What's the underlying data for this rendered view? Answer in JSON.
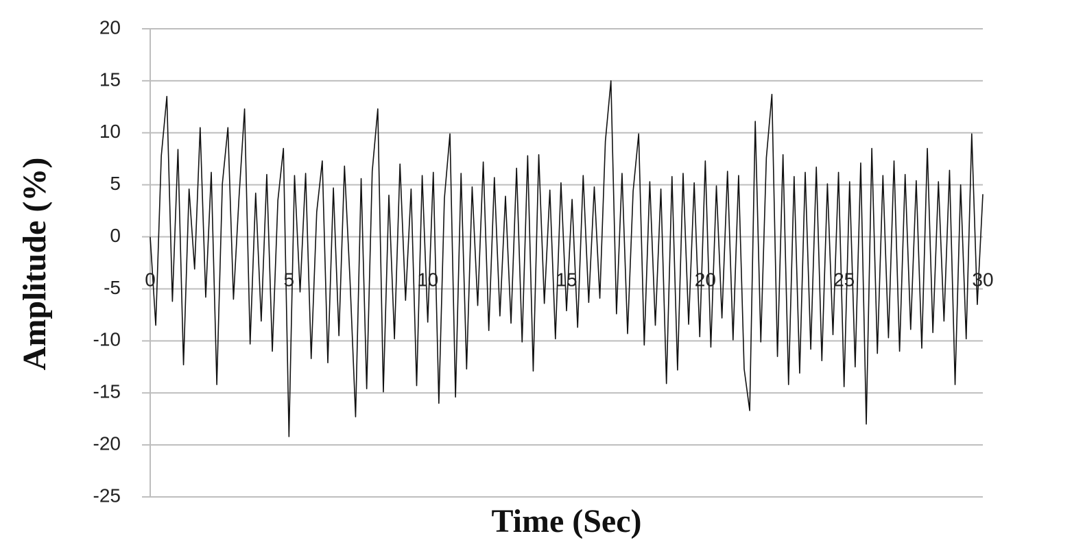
{
  "chart_data": {
    "type": "line",
    "x_label": "Time (Sec)",
    "y_label": "Amplitude (%)",
    "x": [
      0,
      0.2,
      0.4,
      0.6,
      0.8,
      1,
      1.2,
      1.4,
      1.6,
      1.8,
      2,
      2.2,
      2.4,
      2.6,
      2.8,
      3,
      3.2,
      3.4,
      3.6,
      3.8,
      4,
      4.2,
      4.4,
      4.6,
      4.8,
      5,
      5.2,
      5.4,
      5.6,
      5.8,
      6,
      6.2,
      6.4,
      6.6,
      6.8,
      7,
      7.2,
      7.4,
      7.6,
      7.8,
      8,
      8.2,
      8.4,
      8.6,
      8.8,
      9,
      9.2,
      9.4,
      9.6,
      9.8,
      10,
      10.2,
      10.4,
      10.6,
      10.8,
      11,
      11.2,
      11.4,
      11.6,
      11.8,
      12,
      12.2,
      12.4,
      12.6,
      12.8,
      13,
      13.2,
      13.4,
      13.6,
      13.8,
      14,
      14.2,
      14.4,
      14.6,
      14.8,
      15,
      15.2,
      15.4,
      15.6,
      15.8,
      16,
      16.2,
      16.4,
      16.6,
      16.8,
      17,
      17.2,
      17.4,
      17.6,
      17.8,
      18,
      18.2,
      18.4,
      18.6,
      18.8,
      19,
      19.2,
      19.4,
      19.6,
      19.8,
      20,
      20.2,
      20.4,
      20.6,
      20.8,
      21,
      21.2,
      21.4,
      21.6,
      21.8,
      22,
      22.2,
      22.4,
      22.6,
      22.8,
      23,
      23.2,
      23.4,
      23.6,
      23.8,
      24,
      24.2,
      24.4,
      24.6,
      24.8,
      25,
      25.2,
      25.4,
      25.6,
      25.8,
      26,
      26.2,
      26.4,
      26.6,
      26.8,
      27,
      27.2,
      27.4,
      27.6,
      27.8,
      28,
      28.2,
      28.4,
      28.6,
      28.8,
      29,
      29.2,
      29.4,
      29.6,
      29.8,
      30
    ],
    "series": [
      {
        "color": "#111111",
        "values": [
          0,
          -8.5,
          7.8,
          13.5,
          -6.2,
          8.4,
          -12.3,
          4.6,
          -3.1,
          10.5,
          -5.8,
          6.2,
          -14.2,
          5.1,
          10.5,
          -6.0,
          3.8,
          12.3,
          -10.3,
          4.2,
          -8.1,
          6.0,
          -11.0,
          3.5,
          8.5,
          -19.2,
          5.9,
          -5.3,
          6.1,
          -11.7,
          2.4,
          7.3,
          -12.1,
          4.7,
          -9.5,
          6.8,
          -4.2,
          -17.3,
          5.6,
          -14.6,
          6.3,
          12.3,
          -14.9,
          4.0,
          -9.8,
          7.0,
          -6.1,
          4.6,
          -14.3,
          5.9,
          -8.2,
          6.2,
          -16.0,
          3.7,
          9.9,
          -15.4,
          6.1,
          -12.7,
          4.8,
          -6.6,
          7.2,
          -9.0,
          5.7,
          -7.6,
          3.9,
          -8.3,
          6.6,
          -10.1,
          7.8,
          -12.9,
          7.9,
          -6.4,
          4.5,
          -9.8,
          5.2,
          -7.1,
          3.6,
          -8.7,
          5.9,
          -6.3,
          4.8,
          -5.9,
          9.2,
          15.0,
          -7.4,
          6.1,
          -9.3,
          4.4,
          9.9,
          -10.4,
          5.3,
          -8.5,
          4.6,
          -14.1,
          5.8,
          -12.8,
          6.1,
          -8.4,
          5.2,
          -9.6,
          7.3,
          -10.6,
          4.9,
          -7.8,
          6.3,
          -9.9,
          5.9,
          -12.7,
          -16.7,
          11.1,
          -10.1,
          7.6,
          13.7,
          -11.5,
          7.9,
          -14.2,
          5.8,
          -13.1,
          6.2,
          -10.8,
          6.7,
          -11.9,
          5.1,
          -9.4,
          6.2,
          -14.4,
          5.3,
          -12.5,
          7.1,
          -18.0,
          8.5,
          -11.2,
          5.9,
          -9.7,
          7.3,
          -11.0,
          6.0,
          -8.9,
          5.4,
          -10.7,
          8.5,
          -9.2,
          5.3,
          -8.1,
          6.4,
          -14.2,
          5.0,
          -9.8,
          9.9,
          -6.5,
          4.1
        ]
      }
    ],
    "xlim": [
      0,
      30
    ],
    "xticks": [
      0,
      5,
      10,
      15,
      20,
      25,
      30
    ],
    "ylim": [
      -25,
      20
    ],
    "yticks": [
      -25,
      -20,
      -15,
      -10,
      -5,
      0,
      5,
      10,
      15,
      20
    ],
    "grid": true
  }
}
